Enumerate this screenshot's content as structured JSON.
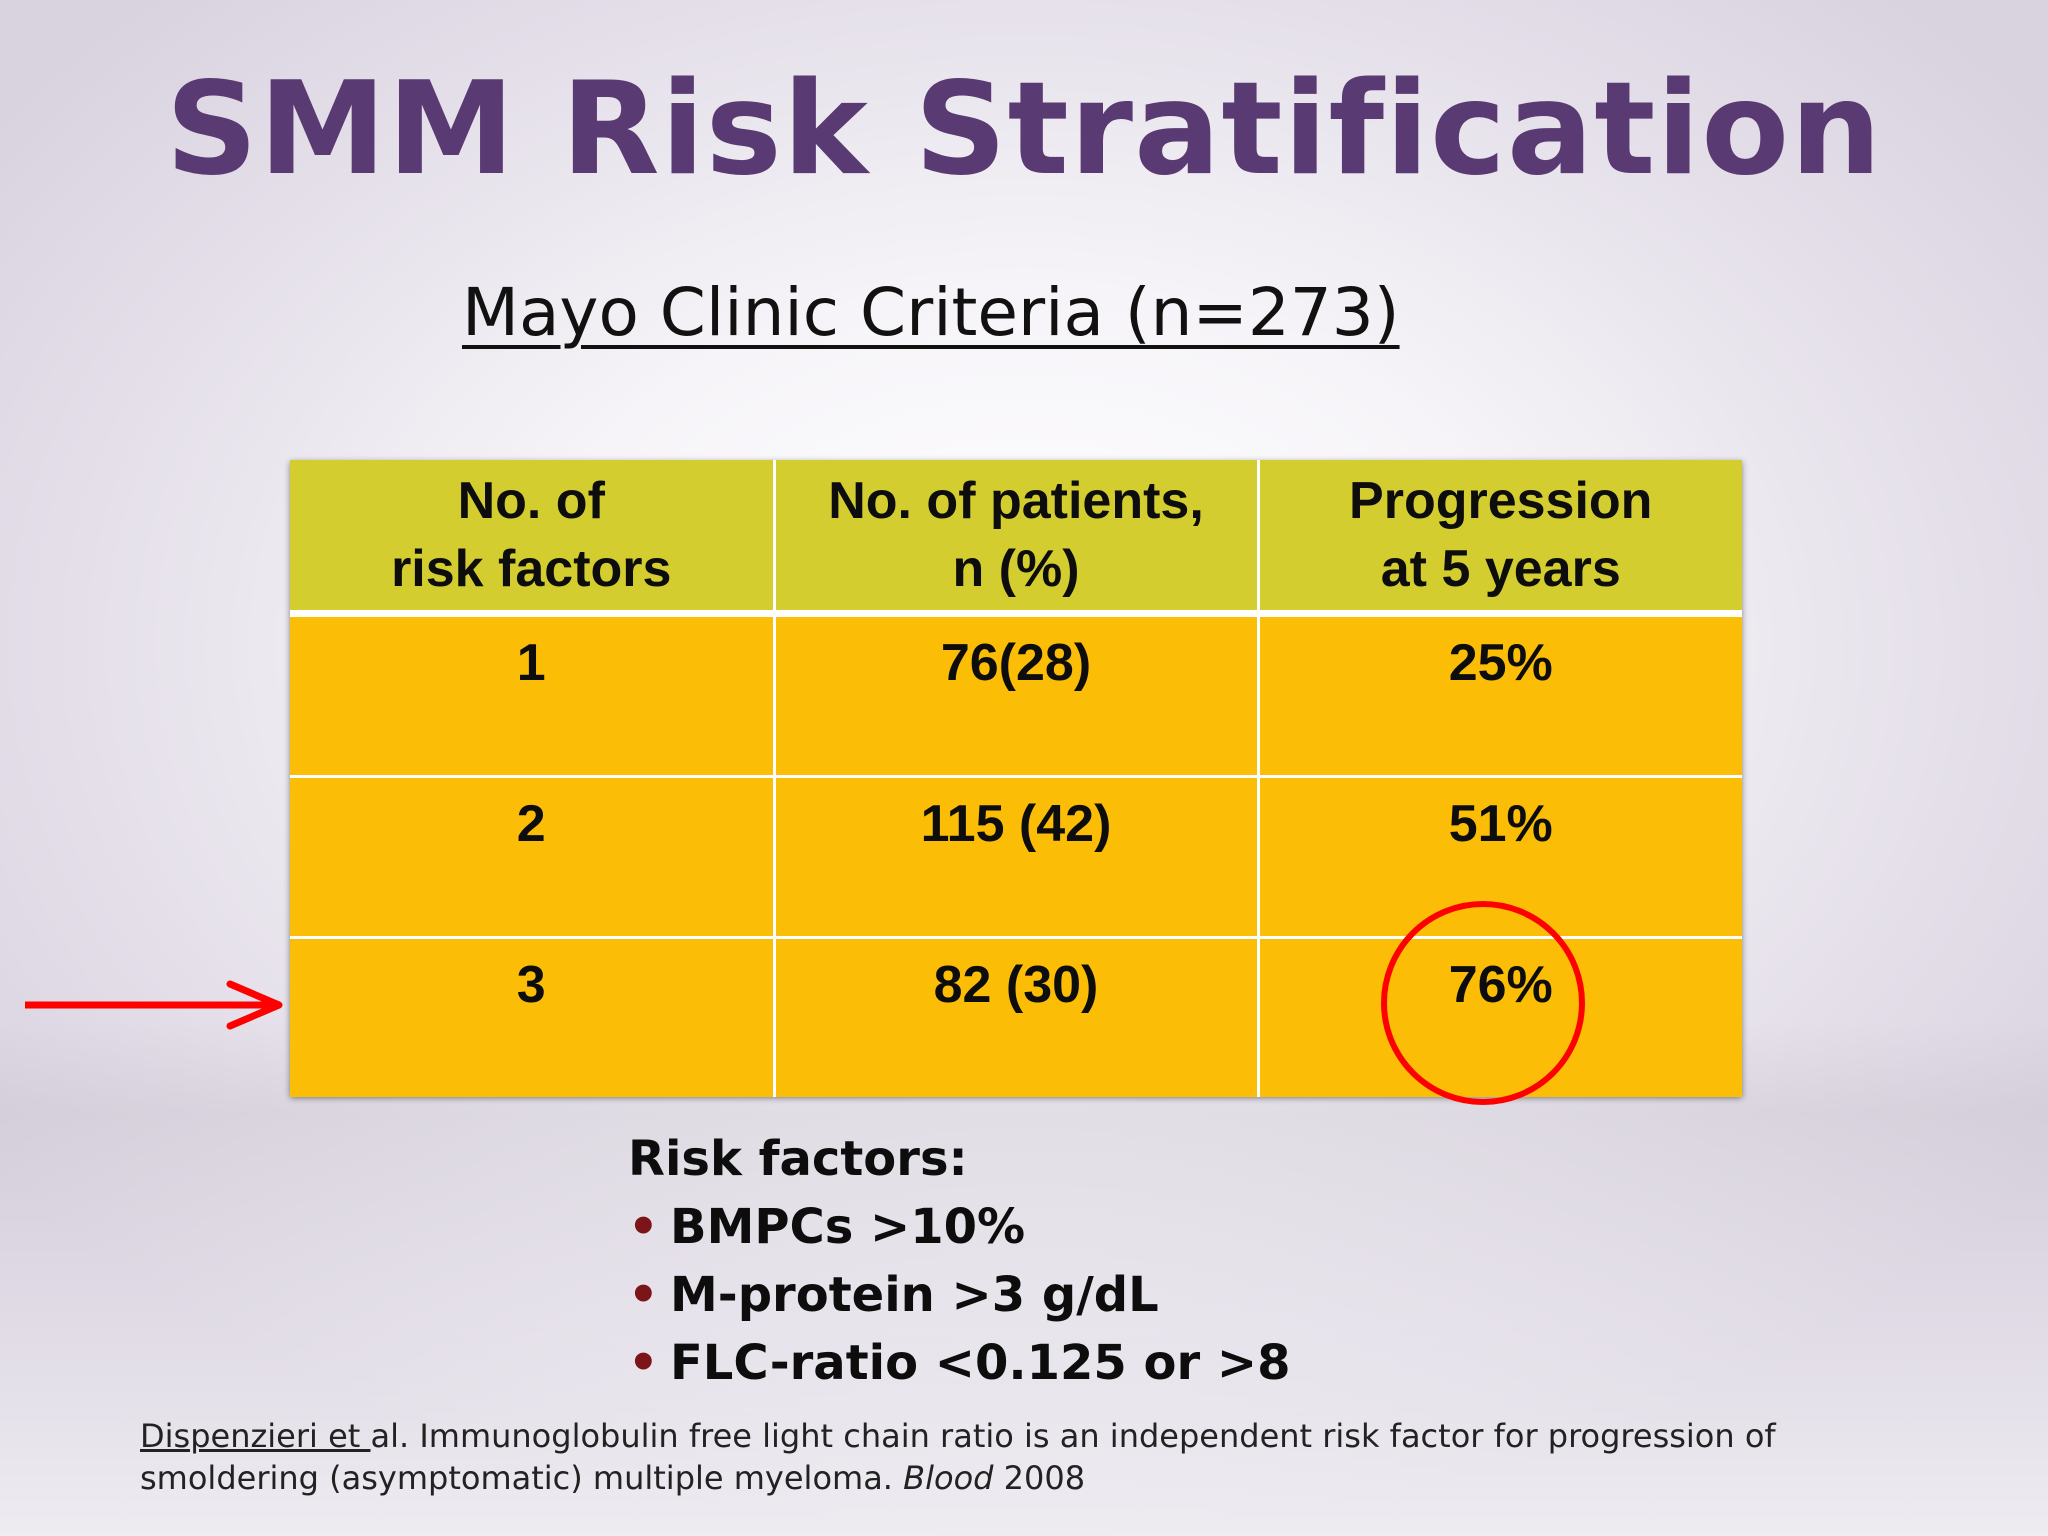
{
  "slide": {
    "title": "SMM Risk Stratification",
    "subtitle": "Mayo Clinic Criteria (n=273)"
  },
  "table": {
    "headers": [
      {
        "line1": "No. of",
        "line2": "risk factors"
      },
      {
        "line1": "No. of patients,",
        "line2": "n (%)"
      },
      {
        "line1": "Progression",
        "line2": "at 5 years"
      }
    ],
    "rows": [
      {
        "risk_factors": "1",
        "patients": "76(28)",
        "progression": "25%"
      },
      {
        "risk_factors": "2",
        "patients": "115 (42)",
        "progression": "51%"
      },
      {
        "risk_factors": "3",
        "patients": "82 (30)",
        "progression": "76%"
      }
    ],
    "header_color": "#d4cd2f",
    "body_color": "#fbbd06",
    "highlight_color": "#ff0000"
  },
  "risk_factors": {
    "heading": "Risk factors:",
    "items": [
      "BMPCs >10%",
      "M-protein >3 g/dL",
      "FLC-ratio <0.125 or >8"
    ],
    "bullet": "•"
  },
  "citation": {
    "author": "Dispenzieri et ",
    "text": "al. Immunoglobulin free light chain ratio is an independent risk factor for progression of smoldering (asymptomatic) multiple myeloma. ",
    "journal": "Blood",
    "year": " 2008"
  },
  "colors": {
    "title": "#5a3a72",
    "arrow": "#ff0000"
  }
}
